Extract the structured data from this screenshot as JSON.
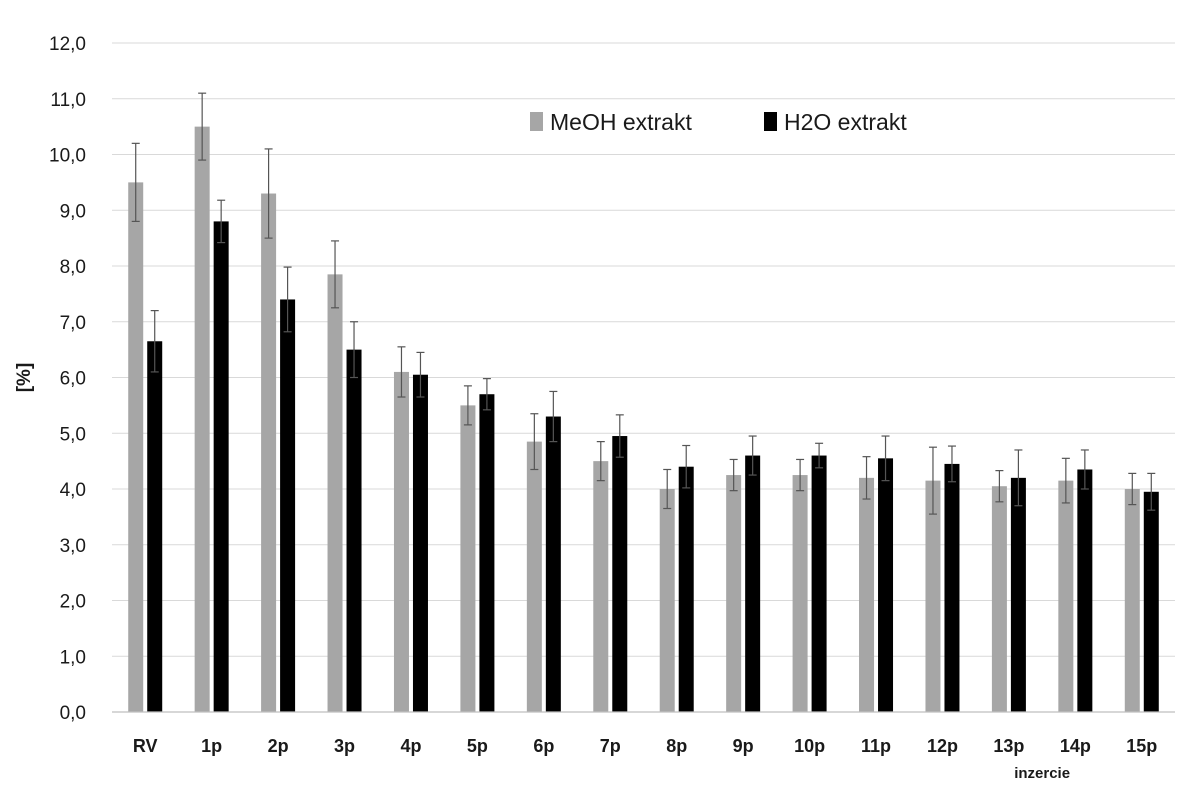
{
  "chart_data": {
    "type": "bar",
    "ylabel": "[%]",
    "xlabel": "inzercie",
    "ylim": [
      0,
      12
    ],
    "ytick_step": 1,
    "ytick_decimals": 1,
    "decimal_separator": ",",
    "grid": true,
    "legend_position": "top-center",
    "categories": [
      "RV",
      "1p",
      "2p",
      "3p",
      "4p",
      "5p",
      "6p",
      "7p",
      "8p",
      "9p",
      "10p",
      "11p",
      "12p",
      "13p",
      "14p",
      "15p"
    ],
    "series": [
      {
        "name": "MeOH extrakt",
        "color": "#a6a6a6",
        "values": [
          9.5,
          10.5,
          9.3,
          7.85,
          6.1,
          5.5,
          4.85,
          4.5,
          4.0,
          4.25,
          4.25,
          4.2,
          4.15,
          4.05,
          4.15,
          4.0
        ],
        "errors": [
          0.7,
          0.6,
          0.8,
          0.6,
          0.45,
          0.35,
          0.5,
          0.35,
          0.35,
          0.28,
          0.28,
          0.38,
          0.6,
          0.28,
          0.4,
          0.28
        ]
      },
      {
        "name": "H2O extrakt",
        "color": "#000000",
        "values": [
          6.65,
          8.8,
          7.4,
          6.5,
          6.05,
          5.7,
          5.3,
          4.95,
          4.4,
          4.6,
          4.6,
          4.55,
          4.45,
          4.2,
          4.35,
          3.95
        ],
        "errors": [
          0.55,
          0.38,
          0.58,
          0.5,
          0.4,
          0.28,
          0.45,
          0.38,
          0.38,
          0.35,
          0.22,
          0.4,
          0.32,
          0.5,
          0.35,
          0.33
        ]
      }
    ]
  }
}
